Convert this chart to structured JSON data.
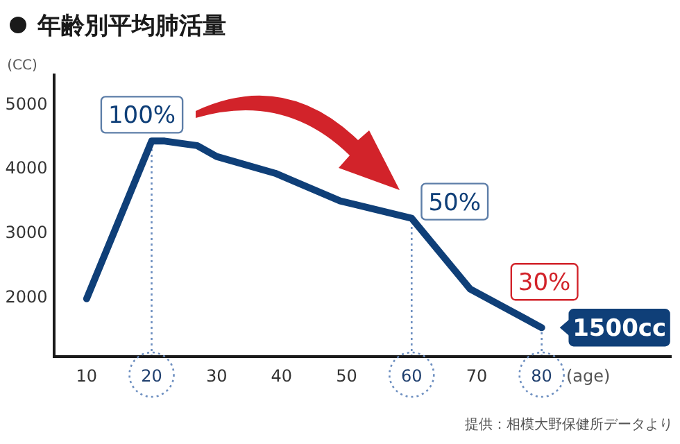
{
  "chart_data": {
    "type": "line",
    "title": "年齢別平均肺活量",
    "x": [
      10,
      20,
      22,
      27,
      30,
      39,
      49,
      60,
      69,
      80
    ],
    "series": [
      {
        "color": "#0f3f78",
        "values": [
          1950,
          4400,
          4400,
          4330,
          4160,
          3900,
          3470,
          3200,
          2100,
          1500
        ]
      }
    ],
    "xlim": [
      5,
      100
    ],
    "ylim": [
      1050,
      5450
    ],
    "xticks": [
      10,
      20,
      30,
      40,
      50,
      60,
      70,
      80
    ],
    "yticks": [
      2000,
      3000,
      4000,
      5000
    ],
    "xlabel": "(age)",
    "ylabel": "(CC)",
    "grid": false,
    "marker": "none",
    "line_style": "solid",
    "ref_lines": [
      {
        "axis": "x",
        "value": 20,
        "color": "#6d8fc0",
        "line_style": "dotted"
      },
      {
        "axis": "x",
        "value": 60,
        "color": "#6d8fc0",
        "line_style": "dotted"
      },
      {
        "axis": "x",
        "value": 80,
        "color": "#6d8fc0",
        "line_style": "dotted"
      }
    ],
    "annotations": [
      {
        "text": "100%",
        "x": 20,
        "y": 4400
      },
      {
        "text": "50%",
        "x": 60,
        "y": 3200
      },
      {
        "text": "30%",
        "x": 80,
        "y": 1500
      },
      {
        "text": "1500cc",
        "x": 80,
        "y": 1500
      },
      "提供：相模大野保健所データより"
    ]
  }
}
